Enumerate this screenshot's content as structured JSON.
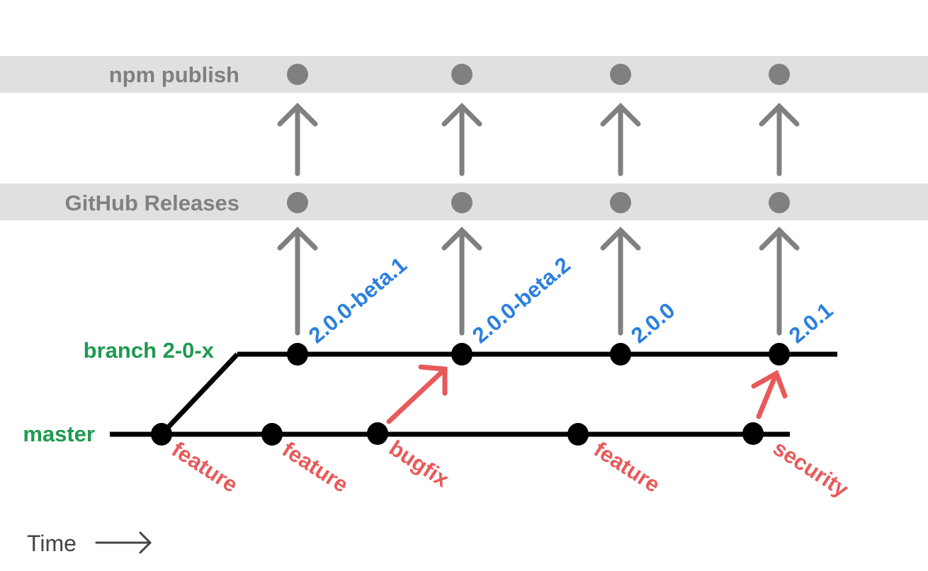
{
  "rows": {
    "npm_publish": "npm publish",
    "github_releases": "GitHub Releases",
    "branch": "branch 2-0-x",
    "master": "master"
  },
  "versions": [
    "2.0.0-beta.1",
    "2.0.0-beta.2",
    "2.0.0",
    "2.0.1"
  ],
  "commits": [
    "feature",
    "feature",
    "bugfix",
    "feature",
    "security"
  ],
  "time_label": "Time",
  "colors": {
    "band": "#e0e0e0",
    "gray": "#808080",
    "branch_text": "#1e9a50",
    "version_text": "#2b7fe0",
    "commit_text": "#e85a5a",
    "line": "#000000"
  }
}
